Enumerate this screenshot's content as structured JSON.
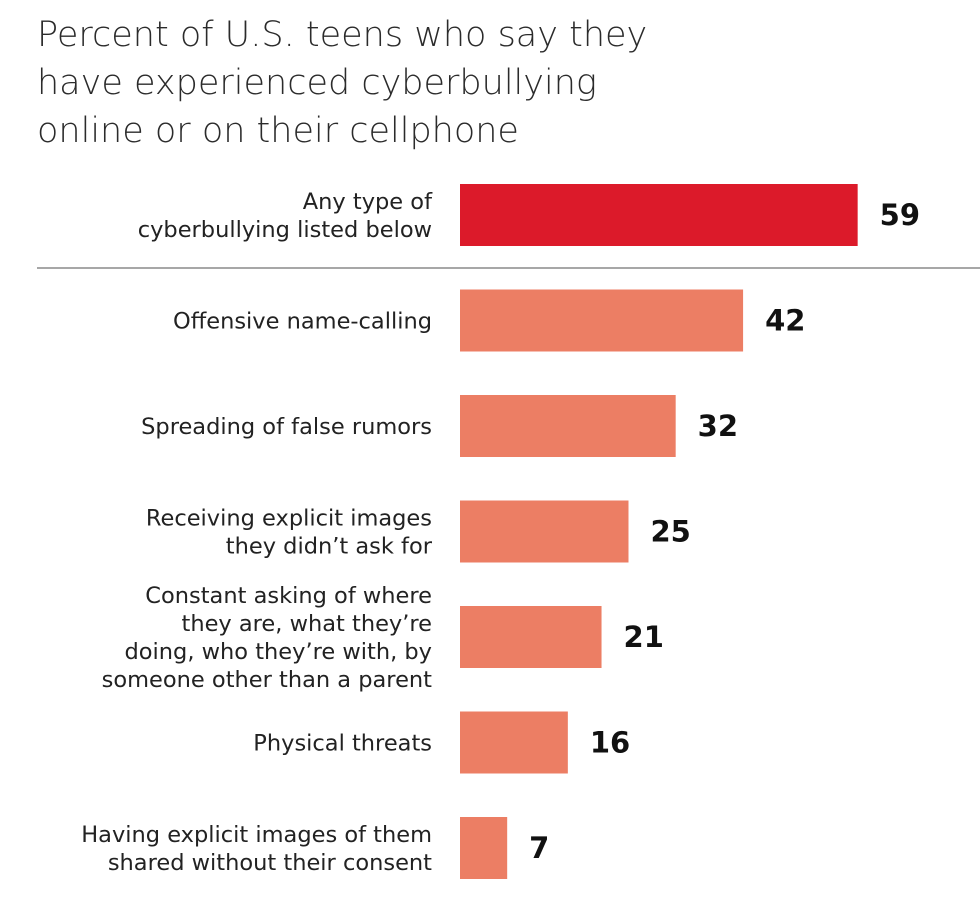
{
  "title_lines": [
    "Percent of U.S. teens who say they",
    "have experienced cyberbullying",
    "online or on their cellphone"
  ],
  "colors": {
    "highlight": "#dc1a2a",
    "bar": "#ec7e64",
    "divider": "#8a8a8a",
    "text": "#222222"
  },
  "chart_data": {
    "type": "bar",
    "orientation": "horizontal",
    "title": "Percent of U.S. teens who say they have experienced cyberbullying online or on their cellphone",
    "categories": [
      [
        "Any type of",
        "cyberbullying listed below"
      ],
      [
        "Offensive name-calling"
      ],
      [
        "Spreading of false rumors"
      ],
      [
        "Receiving explicit images",
        "they didn’t ask for"
      ],
      [
        "Constant asking of where",
        "they are, what they’re",
        "doing, who they’re with, by",
        "someone other than a parent"
      ],
      [
        "Physical threats"
      ],
      [
        "Having explicit images of them",
        "shared without their consent"
      ]
    ],
    "values": [
      59,
      42,
      32,
      25,
      21,
      16,
      7
    ],
    "highlight_index": 0,
    "divider_after_index": 0,
    "xlim": [
      0,
      100
    ],
    "grid": false,
    "legend": "none"
  }
}
